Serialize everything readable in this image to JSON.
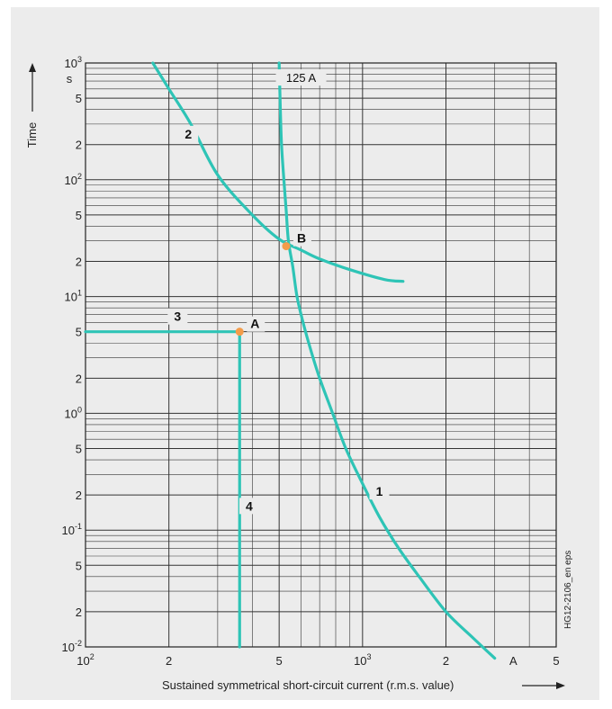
{
  "chart_data": {
    "type": "line",
    "title": "",
    "xlabel": "Sustained symmetrical short-circuit current (r.m.s. value)",
    "ylabel": "Time",
    "x_scale": "log",
    "y_scale": "log",
    "xlim": [
      100,
      5000
    ],
    "ylim": [
      0.01,
      1000
    ],
    "grid": true,
    "x_unit": "A",
    "y_unit": "s",
    "x_ticks": [
      {
        "value": 100,
        "base": "10",
        "exp": "2"
      },
      {
        "value": 200,
        "base": "2",
        "exp": ""
      },
      {
        "value": 500,
        "base": "5",
        "exp": ""
      },
      {
        "value": 1000,
        "base": "10",
        "exp": "3"
      },
      {
        "value": 2000,
        "base": "2",
        "exp": ""
      },
      {
        "value": 5000,
        "base": "5",
        "exp": ""
      }
    ],
    "y_ticks": [
      {
        "value": 1000,
        "base": "10",
        "exp": "3"
      },
      {
        "value": 500,
        "base": "5",
        "exp": ""
      },
      {
        "value": 200,
        "base": "2",
        "exp": ""
      },
      {
        "value": 100,
        "base": "10",
        "exp": "2"
      },
      {
        "value": 50,
        "base": "5",
        "exp": ""
      },
      {
        "value": 20,
        "base": "2",
        "exp": ""
      },
      {
        "value": 10,
        "base": "10",
        "exp": "1"
      },
      {
        "value": 5,
        "base": "5",
        "exp": ""
      },
      {
        "value": 2,
        "base": "2",
        "exp": ""
      },
      {
        "value": 1,
        "base": "10",
        "exp": "0"
      },
      {
        "value": 0.5,
        "base": "5",
        "exp": ""
      },
      {
        "value": 0.2,
        "base": "2",
        "exp": ""
      },
      {
        "value": 0.1,
        "base": "10",
        "exp": "-1"
      },
      {
        "value": 0.05,
        "base": "5",
        "exp": ""
      },
      {
        "value": 0.02,
        "base": "2",
        "exp": ""
      },
      {
        "value": 0.01,
        "base": "10",
        "exp": "-2"
      }
    ],
    "series": [
      {
        "callout": "1",
        "color": "#2ec4b6",
        "x": [
          500,
          505,
          510,
          520,
          530,
          540,
          560,
          580,
          610,
          650,
          700,
          780,
          870,
          1000,
          1150,
          1350,
          1600,
          2000,
          2500,
          3000
        ],
        "y": [
          1000,
          400,
          200,
          100,
          55,
          30,
          18,
          10,
          6,
          3.5,
          2,
          1,
          0.5,
          0.25,
          0.13,
          0.07,
          0.04,
          0.02,
          0.012,
          0.008
        ]
      },
      {
        "callout": "2",
        "color": "#2ec4b6",
        "x": [
          175,
          200,
          240,
          300,
          400,
          500,
          600,
          700,
          900,
          1200,
          1400
        ],
        "y": [
          1000,
          600,
          300,
          110,
          50,
          31,
          25,
          21,
          17,
          14,
          13.5
        ]
      },
      {
        "callout": "3",
        "color": "#2ec4b6",
        "x": [
          100,
          360
        ],
        "y": [
          5,
          5
        ]
      },
      {
        "callout": "4",
        "color": "#2ec4b6",
        "x": [
          360,
          360
        ],
        "y": [
          5,
          0.01
        ]
      }
    ],
    "markers": [
      {
        "label": "A",
        "x": 360,
        "y": 5,
        "color": "#f39c4a"
      },
      {
        "label": "B",
        "x": 530,
        "y": 27,
        "color": "#f39c4a"
      }
    ],
    "annotations": [
      {
        "text": "125 A",
        "x": 600,
        "y": 700
      },
      {
        "text": "1",
        "x": 1150,
        "y": 0.2
      },
      {
        "text": "2",
        "x": 235,
        "y": 230
      },
      {
        "text": "3",
        "x": 215,
        "y": 6.3
      },
      {
        "text": "4",
        "x": 390,
        "y": 0.15
      }
    ],
    "side_note": "HG12-2106_en eps"
  }
}
